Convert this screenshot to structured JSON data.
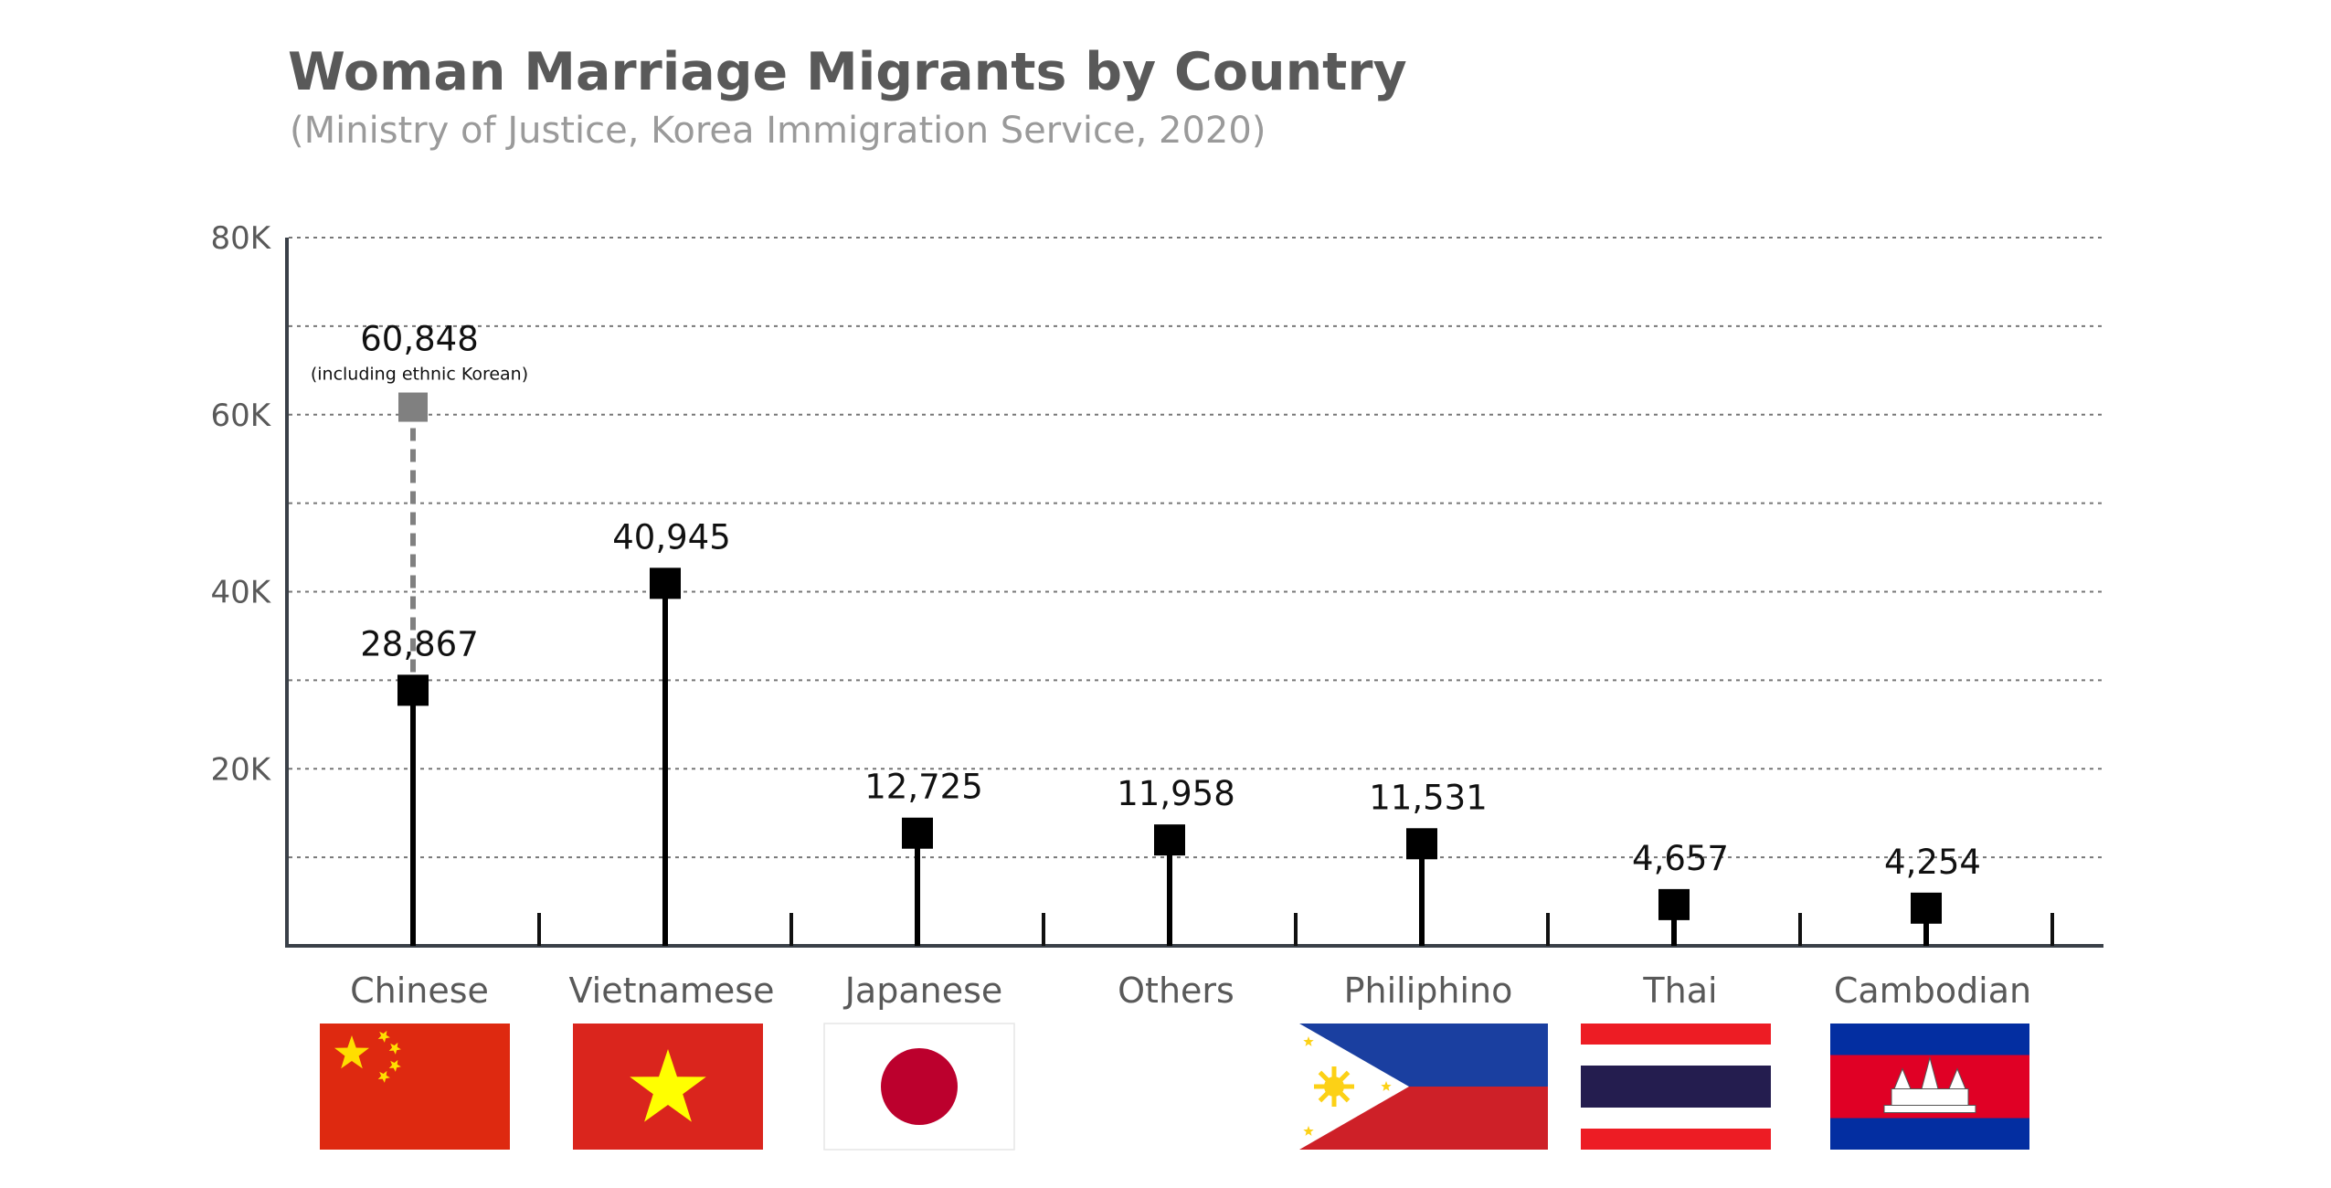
{
  "chart_data": {
    "type": "lollipop",
    "title": "Woman Marriage Migrants by Country",
    "subtitle": "(Ministry of Justice, Korea Immigration Service, 2020)",
    "xlabel": "",
    "ylabel": "",
    "ylim": [
      0,
      80000
    ],
    "yticks": [
      20000,
      40000,
      60000,
      80000
    ],
    "ytick_labels": [
      "20K",
      "40K",
      "60K",
      "80K"
    ],
    "minor_gridlines": [
      10000,
      30000,
      50000,
      70000
    ],
    "grid": true,
    "categories": [
      "Chinese",
      "Vietnamese",
      "Japanese",
      "Others",
      "Philiphino",
      "Thai",
      "Cambodian"
    ],
    "values": [
      28867,
      40945,
      12725,
      11958,
      11531,
      4657,
      4254
    ],
    "value_labels": [
      "28,867",
      "40,945",
      "12,725",
      "11,958",
      "11,531",
      "4,657",
      "4,254"
    ],
    "extra_point": {
      "category": "Chinese",
      "value": 60848,
      "label": "60,848",
      "note": "(including ethnic Korean)",
      "color": "#808080"
    },
    "marker_color": "#000000",
    "flags": [
      "china-flag",
      "vietnam-flag",
      "japan-flag",
      "",
      "philippines-flag",
      "thailand-flag",
      "cambodia-flag"
    ]
  }
}
